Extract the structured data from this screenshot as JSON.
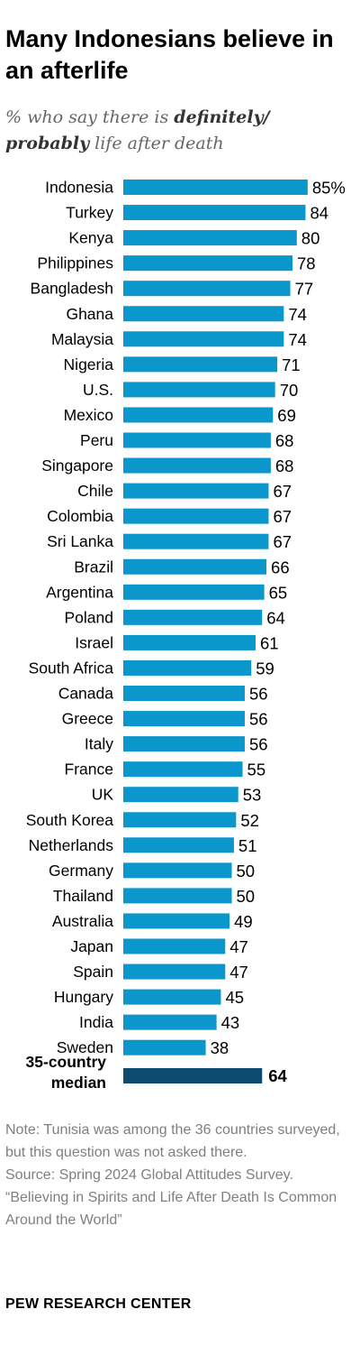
{
  "title": "Many Indonesians believe in an afterlife",
  "subtitle": {
    "prefix": "% who say there is ",
    "emph1": "definitely/",
    "emph2": "probably",
    "suffix": " life after death"
  },
  "chart_data": {
    "type": "bar",
    "orientation": "horizontal",
    "categories": [
      "Indonesia",
      "Turkey",
      "Kenya",
      "Philippines",
      "Bangladesh",
      "Ghana",
      "Malaysia",
      "Nigeria",
      "U.S.",
      "Mexico",
      "Peru",
      "Singapore",
      "Chile",
      "Colombia",
      "Sri Lanka",
      "Brazil",
      "Argentina",
      "Poland",
      "Israel",
      "South Africa",
      "Canada",
      "Greece",
      "Italy",
      "France",
      "UK",
      "South Korea",
      "Netherlands",
      "Germany",
      "Thailand",
      "Australia",
      "Japan",
      "Spain",
      "Hungary",
      "India",
      "Sweden"
    ],
    "values": [
      85,
      84,
      80,
      78,
      77,
      74,
      74,
      71,
      70,
      69,
      68,
      68,
      67,
      67,
      67,
      66,
      65,
      64,
      61,
      59,
      56,
      56,
      56,
      55,
      53,
      52,
      51,
      50,
      50,
      49,
      47,
      47,
      45,
      43,
      38
    ],
    "value_labels": [
      "85%",
      "84",
      "80",
      "78",
      "77",
      "74",
      "74",
      "71",
      "70",
      "69",
      "68",
      "68",
      "67",
      "67",
      "67",
      "66",
      "65",
      "64",
      "61",
      "59",
      "56",
      "56",
      "56",
      "55",
      "53",
      "52",
      "51",
      "50",
      "50",
      "49",
      "47",
      "47",
      "45",
      "43",
      "38"
    ],
    "median": {
      "label_line1": "35-country",
      "label_line2": "median",
      "value": 64,
      "value_label": "64"
    },
    "bar_color": "#0b97cc",
    "median_color": "#0d4a70",
    "xlim": [
      0,
      100
    ]
  },
  "notes": {
    "note": "Note: Tunisia was among the 36 countries surveyed, but this question was not asked there.",
    "source": "Source: Spring 2024 Global Attitudes Survey.",
    "report": "“Believing in Spirits and Life After Death Is Common Around the World”"
  },
  "footer": "PEW RESEARCH CENTER"
}
